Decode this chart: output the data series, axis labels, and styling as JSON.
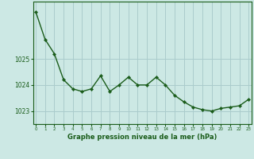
{
  "x": [
    0,
    1,
    2,
    3,
    4,
    5,
    6,
    7,
    8,
    9,
    10,
    11,
    12,
    13,
    14,
    15,
    16,
    17,
    18,
    19,
    20,
    21,
    22,
    23
  ],
  "y": [
    1026.8,
    1025.75,
    1025.2,
    1024.2,
    1023.85,
    1023.75,
    1023.85,
    1024.35,
    1023.75,
    1024.0,
    1024.3,
    1024.0,
    1024.0,
    1024.3,
    1024.0,
    1023.6,
    1023.35,
    1023.15,
    1023.05,
    1023.0,
    1023.1,
    1023.15,
    1023.2,
    1023.45
  ],
  "line_color": "#1a5c1a",
  "marker_color": "#1a5c1a",
  "bg_color": "#cce8e4",
  "plot_bg_color": "#cce8e4",
  "grid_color": "#aacccc",
  "xlabel": "Graphe pression niveau de la mer (hPa)",
  "xlabel_color": "#1a5c1a",
  "tick_color": "#1a5c1a",
  "ylim_min": 1022.5,
  "ylim_max": 1027.2,
  "yticks": [
    1023,
    1024,
    1025
  ],
  "xticks": [
    0,
    1,
    2,
    3,
    4,
    5,
    6,
    7,
    8,
    9,
    10,
    11,
    12,
    13,
    14,
    15,
    16,
    17,
    18,
    19,
    20,
    21,
    22,
    23
  ],
  "xtick_labels": [
    "0",
    "1",
    "2",
    "3",
    "4",
    "5",
    "6",
    "7",
    "8",
    "9",
    "10",
    "11",
    "12",
    "13",
    "14",
    "15",
    "16",
    "17",
    "18",
    "19",
    "20",
    "21",
    "22",
    "23"
  ]
}
